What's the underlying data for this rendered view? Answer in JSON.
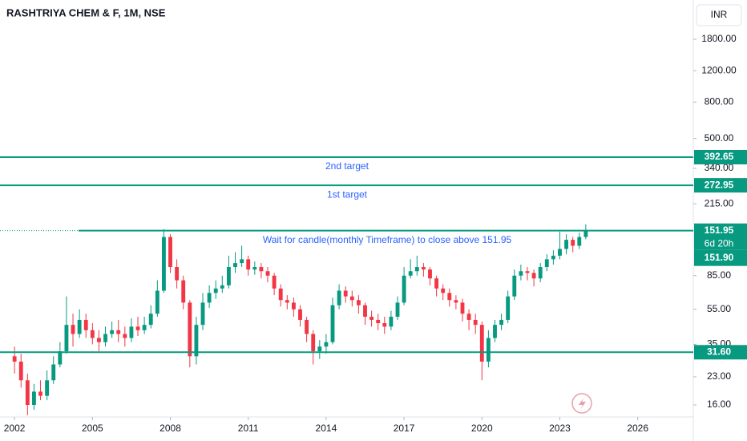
{
  "chart_data": {
    "type": "candlestick",
    "title": "RASHTRIYA CHEM & F, 1M, NSE",
    "currency": "INR",
    "log_scale": true,
    "up_color": "#089981",
    "down_color": "#f23645",
    "level_color": "#089981",
    "x": [
      2002,
      2002.25,
      2002.5,
      2002.75,
      2003,
      2003.25,
      2003.5,
      2003.75,
      2004,
      2004.25,
      2004.5,
      2004.75,
      2005,
      2005.25,
      2005.5,
      2005.75,
      2006,
      2006.25,
      2006.5,
      2006.75,
      2007,
      2007.25,
      2007.5,
      2007.75,
      2008,
      2008.25,
      2008.5,
      2008.75,
      2009,
      2009.25,
      2009.5,
      2009.75,
      2010,
      2010.25,
      2010.5,
      2010.75,
      2011,
      2011.25,
      2011.5,
      2011.75,
      2012,
      2012.25,
      2012.5,
      2012.75,
      2013,
      2013.25,
      2013.5,
      2013.75,
      2014,
      2014.25,
      2014.5,
      2014.75,
      2015,
      2015.25,
      2015.5,
      2015.75,
      2016,
      2016.25,
      2016.5,
      2016.75,
      2017,
      2017.25,
      2017.5,
      2017.75,
      2018,
      2018.25,
      2018.5,
      2018.75,
      2019,
      2019.25,
      2019.5,
      2019.75,
      2020,
      2020.25,
      2020.5,
      2020.75,
      2021,
      2021.25,
      2021.5,
      2021.75,
      2022,
      2022.25,
      2022.5,
      2022.75,
      2023,
      2023.25,
      2023.5,
      2023.75,
      2024
    ],
    "open": [
      30,
      28,
      22,
      16,
      19,
      18,
      22,
      27,
      32,
      45,
      40,
      48,
      42,
      38,
      36,
      40,
      42,
      40,
      38,
      44,
      42,
      45,
      52,
      70,
      140,
      95,
      80,
      60,
      30,
      45,
      60,
      68,
      72,
      75,
      95,
      100,
      105,
      92,
      95,
      90,
      85,
      72,
      62,
      60,
      55,
      48,
      40,
      32,
      34,
      36,
      58,
      70,
      65,
      62,
      58,
      50,
      48,
      46,
      44,
      50,
      60,
      85,
      90,
      95,
      92,
      82,
      72,
      68,
      62,
      60,
      52,
      48,
      45,
      28,
      38,
      45,
      48,
      65,
      85,
      90,
      88,
      82,
      95,
      105,
      110,
      120,
      135,
      125,
      140
    ],
    "high": [
      34,
      31,
      24,
      21,
      22,
      25,
      30,
      36,
      65,
      52,
      55,
      52,
      46,
      42,
      44,
      47,
      48,
      44,
      49,
      50,
      50,
      58,
      80,
      155,
      145,
      105,
      85,
      62,
      50,
      68,
      75,
      80,
      85,
      110,
      115,
      125,
      110,
      102,
      100,
      95,
      88,
      76,
      66,
      64,
      58,
      50,
      42,
      37,
      40,
      64,
      76,
      74,
      70,
      66,
      60,
      54,
      52,
      50,
      54,
      65,
      95,
      105,
      110,
      100,
      95,
      85,
      76,
      72,
      66,
      63,
      55,
      52,
      47,
      42,
      48,
      52,
      70,
      92,
      98,
      95,
      92,
      100,
      112,
      118,
      150,
      145,
      140,
      148,
      165
    ],
    "low": [
      24,
      20,
      14,
      15,
      17,
      17,
      21,
      26,
      31,
      34,
      38,
      38,
      35,
      32,
      34,
      38,
      36,
      34,
      36,
      39,
      40,
      43,
      50,
      68,
      88,
      72,
      55,
      26,
      27,
      42,
      56,
      63,
      68,
      72,
      88,
      95,
      85,
      86,
      82,
      78,
      66,
      57,
      55,
      50,
      44,
      36,
      27,
      29,
      31,
      35,
      55,
      60,
      57,
      52,
      45,
      44,
      42,
      40,
      42,
      48,
      58,
      82,
      85,
      84,
      75,
      65,
      62,
      57,
      55,
      47,
      42,
      40,
      22,
      26,
      36,
      42,
      46,
      62,
      80,
      80,
      74,
      78,
      90,
      98,
      105,
      112,
      115,
      120,
      136
    ],
    "close": [
      28,
      22,
      16,
      19,
      18,
      22,
      27,
      32,
      45,
      40,
      48,
      42,
      38,
      36,
      40,
      42,
      40,
      38,
      44,
      42,
      45,
      52,
      70,
      140,
      95,
      80,
      60,
      30,
      45,
      60,
      68,
      72,
      75,
      95,
      100,
      105,
      92,
      95,
      90,
      85,
      72,
      62,
      60,
      55,
      48,
      40,
      32,
      34,
      36,
      58,
      70,
      65,
      62,
      58,
      50,
      48,
      46,
      44,
      50,
      60,
      85,
      90,
      95,
      92,
      82,
      72,
      68,
      62,
      60,
      52,
      48,
      45,
      28,
      38,
      45,
      48,
      65,
      85,
      90,
      88,
      82,
      95,
      105,
      110,
      120,
      135,
      125,
      140,
      151.9
    ],
    "xlim": [
      2001.44,
      2028.14
    ],
    "xticks": [
      2002,
      2005,
      2008,
      2011,
      2014,
      2017,
      2020,
      2023,
      2026
    ],
    "ylim": [
      13.7,
      2990
    ],
    "yticks": [
      {
        "value": 1800,
        "label": "1800.00"
      },
      {
        "value": 1200,
        "label": "1200.00"
      },
      {
        "value": 800,
        "label": "800.00"
      },
      {
        "value": 500,
        "label": "500.00"
      },
      {
        "value": 340,
        "label": "340.00"
      },
      {
        "value": 215,
        "label": "215.00"
      },
      {
        "value": 85,
        "label": "85.00"
      },
      {
        "value": 55,
        "label": "55.00"
      },
      {
        "value": 35,
        "label": "35.00"
      },
      {
        "value": 23,
        "label": "23.00"
      },
      {
        "value": 16,
        "label": "16.00"
      }
    ],
    "levels": [
      {
        "value": 392.65,
        "label": "392.65"
      },
      {
        "value": 272.95,
        "label": "272.95"
      },
      {
        "value": 151.95,
        "label": "151.95"
      },
      {
        "value": 31.6,
        "label": "31.60"
      }
    ],
    "annotations": [
      "2nd target",
      "1st target",
      "Wait for candle(monthly Timeframe) to close above 151.95"
    ],
    "countdown": "6d 20h",
    "last_price": {
      "value": 151.9,
      "label": "151.90"
    }
  }
}
